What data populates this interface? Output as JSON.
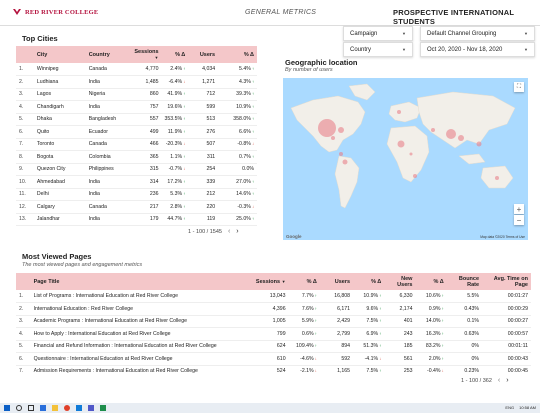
{
  "header": {
    "logo_text": "RED RIVER COLLEGE",
    "center_title": "GENERAL METRICS",
    "right_title": "PROSPECTIVE INTERNATIONAL STUDENTS"
  },
  "filters": {
    "campaign": "Campaign",
    "channel": "Default Channel Grouping",
    "country": "Country",
    "date_range": "Oct 20, 2020 - Nov 18, 2020"
  },
  "top_cities": {
    "title": "Top Cities",
    "columns": [
      "City",
      "Country",
      "Sessions",
      "% Δ",
      "Users",
      "% Δ"
    ],
    "rows": [
      {
        "i": "1.",
        "city": "Winnipeg",
        "country": "Canada",
        "sessions": "4,770",
        "sd": "2.4%",
        "sdir": "up",
        "users": "4,034",
        "ud": "5.4%",
        "udir": "up"
      },
      {
        "i": "2.",
        "city": "Ludhiana",
        "country": "India",
        "sessions": "1,485",
        "sd": "-6.4%",
        "sdir": "dn",
        "users": "1,271",
        "ud": "4.3%",
        "udir": "up"
      },
      {
        "i": "3.",
        "city": "Lagos",
        "country": "Nigeria",
        "sessions": "860",
        "sd": "41.9%",
        "sdir": "up",
        "users": "712",
        "ud": "39.3%",
        "udir": "up"
      },
      {
        "i": "4.",
        "city": "Chandigarh",
        "country": "India",
        "sessions": "757",
        "sd": "19.6%",
        "sdir": "up",
        "users": "599",
        "ud": "10.9%",
        "udir": "up"
      },
      {
        "i": "5.",
        "city": "Dhaka",
        "country": "Bangladesh",
        "sessions": "557",
        "sd": "353.5%",
        "sdir": "up",
        "users": "513",
        "ud": "358.0%",
        "udir": "up"
      },
      {
        "i": "6.",
        "city": "Quito",
        "country": "Ecuador",
        "sessions": "499",
        "sd": "11.9%",
        "sdir": "up",
        "users": "276",
        "ud": "6.6%",
        "udir": "up"
      },
      {
        "i": "7.",
        "city": "Toronto",
        "country": "Canada",
        "sessions": "466",
        "sd": "-20.3%",
        "sdir": "dn",
        "users": "507",
        "ud": "-0.8%",
        "udir": "dn"
      },
      {
        "i": "8.",
        "city": "Bogota",
        "country": "Colombia",
        "sessions": "365",
        "sd": "1.1%",
        "sdir": "up",
        "users": "311",
        "ud": "0.7%",
        "udir": "up"
      },
      {
        "i": "9.",
        "city": "Quezon City",
        "country": "Philippines",
        "sessions": "315",
        "sd": "-0.7%",
        "sdir": "dn",
        "users": "254",
        "ud": "0.0%",
        "udir": ""
      },
      {
        "i": "10.",
        "city": "Ahmedabad",
        "country": "India",
        "sessions": "314",
        "sd": "17.2%",
        "sdir": "up",
        "users": "339",
        "ud": "27.0%",
        "udir": "up"
      },
      {
        "i": "11.",
        "city": "Delhi",
        "country": "India",
        "sessions": "236",
        "sd": "5.3%",
        "sdir": "up",
        "users": "212",
        "ud": "14.6%",
        "udir": "up"
      },
      {
        "i": "12.",
        "city": "Calgary",
        "country": "Canada",
        "sessions": "217",
        "sd": "2.8%",
        "sdir": "up",
        "users": "220",
        "ud": "-0.3%",
        "udir": "dn"
      },
      {
        "i": "13.",
        "city": "Jalandhar",
        "country": "India",
        "sessions": "179",
        "sd": "44.7%",
        "sdir": "up",
        "users": "119",
        "ud": "25.0%",
        "udir": "up"
      }
    ],
    "pager": "1 - 100 / 1545"
  },
  "map": {
    "title": "Geographic location",
    "subtitle": "By number of users",
    "google": "Google",
    "attribution": "Map data ©2020  Terms of Use",
    "fullscreen_icon": "fullscreen-icon",
    "zoom_in": "+",
    "zoom_out": "−"
  },
  "pages": {
    "title": "Most Viewed Pages",
    "subtitle": "The most viewed pages and engagement metrics",
    "columns": [
      "Page Title",
      "Sessions",
      "% Δ",
      "Users",
      "% Δ",
      "New Users",
      "% Δ",
      "Bounce Rate",
      "Avg. Time on Page"
    ],
    "rows": [
      {
        "i": "1.",
        "title": "List of Programs : International Education at Red River College",
        "sessions": "13,043",
        "sd": "7.7%",
        "users": "16,808",
        "ud": "10.9%",
        "new": "6,330",
        "nd": "10.6%",
        "bounce": "5.5%",
        "time": "00:01:27"
      },
      {
        "i": "2.",
        "title": "International Education : Red River College",
        "sessions": "4,396",
        "sd": "7.6%",
        "users": "6,171",
        "ud": "9.6%",
        "new": "2,174",
        "nd": "0.9%",
        "bounce": "0.43%",
        "time": "00:00:29"
      },
      {
        "i": "3.",
        "title": "Academic Programs : International Education at Red River College",
        "sessions": "1,005",
        "sd": "5.9%",
        "users": "2,429",
        "ud": "7.5%",
        "new": "401",
        "nd": "14.0%",
        "bounce": "0.1%",
        "time": "00:00:27"
      },
      {
        "i": "4.",
        "title": "How to Apply : International Education at Red River College",
        "sessions": "799",
        "sd": "0.6%",
        "users": "2,799",
        "ud": "6.9%",
        "new": "243",
        "nd": "16.3%",
        "bounce": "0.63%",
        "time": "00:00:57"
      },
      {
        "i": "5.",
        "title": "Financial and Refund Information : International Education at Red River College",
        "sessions": "624",
        "sd": "109.4%",
        "users": "894",
        "ud": "51.3%",
        "new": "185",
        "nd": "83.2%",
        "bounce": "0%",
        "time": "00:01:11"
      },
      {
        "i": "6.",
        "title": "Questionnaire : International Education at Red River College",
        "sessions": "610",
        "sd": "-4.6%",
        "users": "592",
        "ud": "-4.1%",
        "new": "561",
        "nd": "2.0%",
        "bounce": "0%",
        "time": "00:00:43"
      },
      {
        "i": "7.",
        "title": "Admission Requirements : International Education at Red River College",
        "sessions": "524",
        "sd": "-2.1%",
        "users": "1,165",
        "ud": "7.5%",
        "new": "253",
        "nd": "-0.4%",
        "bounce": "0.23%",
        "time": "00:00:45"
      }
    ],
    "pager": "1 - 100 / 362"
  },
  "taskbar": {
    "lang": "ENG",
    "time": "10:58 AM"
  },
  "colors": {
    "header_fill": "#f4c7c9",
    "brand": "#b4123e",
    "up": "#1a8f3a",
    "down": "#d23a2b",
    "map_water": "#aadaff"
  }
}
